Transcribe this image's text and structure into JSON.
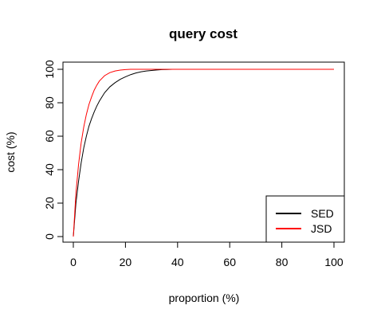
{
  "chart_data": {
    "type": "line",
    "title": "query cost",
    "xlabel": "proportion (%)",
    "ylabel": "cost (%)",
    "xlim": [
      0,
      100
    ],
    "ylim": [
      0,
      100
    ],
    "xticks": [
      0,
      20,
      40,
      60,
      80,
      100
    ],
    "yticks": [
      0,
      20,
      40,
      60,
      80,
      100
    ],
    "grid": false,
    "legend_position": "bottom-right",
    "x": [
      0,
      1,
      2,
      3,
      4,
      5,
      6,
      7,
      8,
      9,
      10,
      12,
      14,
      16,
      18,
      20,
      22,
      24,
      26,
      28,
      30,
      32,
      34,
      36,
      38,
      40,
      50,
      60,
      70,
      80,
      90,
      100
    ],
    "series": [
      {
        "name": "SED",
        "color": "#000000",
        "values": [
          0,
          20,
          33,
          44,
          53,
          60,
          66,
          70.5,
          74.5,
          78,
          81,
          86,
          89.5,
          92,
          94,
          95.5,
          96.8,
          97.8,
          98.5,
          99,
          99.3,
          99.6,
          99.8,
          99.9,
          100,
          100,
          100,
          100,
          100,
          100,
          100,
          100
        ]
      },
      {
        "name": "JSD",
        "color": "#ff0000",
        "values": [
          0,
          26,
          43,
          56,
          65.5,
          73,
          79,
          83.5,
          87.5,
          90.5,
          93,
          96.2,
          98,
          99,
          99.5,
          99.8,
          100,
          100,
          100,
          100,
          100,
          100,
          100,
          100,
          100,
          100,
          100,
          100,
          100,
          100,
          100,
          100
        ]
      }
    ]
  }
}
